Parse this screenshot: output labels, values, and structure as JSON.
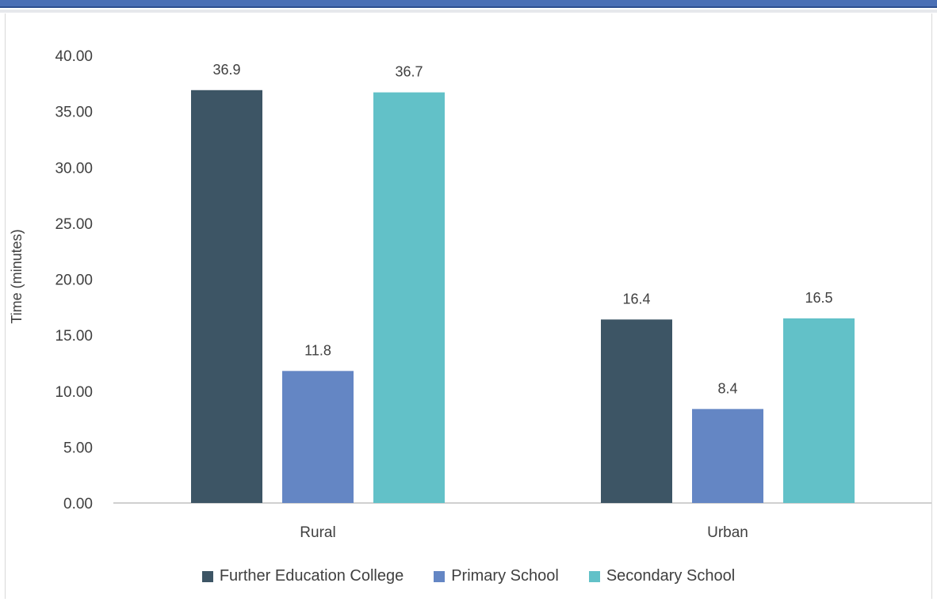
{
  "chart_data": {
    "type": "bar",
    "categories": [
      "Rural",
      "Urban"
    ],
    "series": [
      {
        "name": "Further Education College",
        "values": [
          36.9,
          16.4
        ],
        "labels": [
          "36.9",
          "16.4"
        ],
        "color": "#3d5565"
      },
      {
        "name": "Primary School",
        "values": [
          11.8,
          8.4
        ],
        "labels": [
          "11.8",
          "8.4"
        ],
        "color": "#6486c4"
      },
      {
        "name": "Secondary School",
        "values": [
          36.7,
          16.5
        ],
        "labels": [
          "36.7",
          "16.5"
        ],
        "color": "#62c1c8"
      }
    ],
    "ylabel": "Time (minutes)",
    "ylim": [
      0,
      40
    ],
    "yticks": [
      "0.00",
      "5.00",
      "10.00",
      "15.00",
      "20.00",
      "25.00",
      "30.00",
      "35.00",
      "40.00"
    ],
    "grid": false,
    "legend": "bottom"
  }
}
